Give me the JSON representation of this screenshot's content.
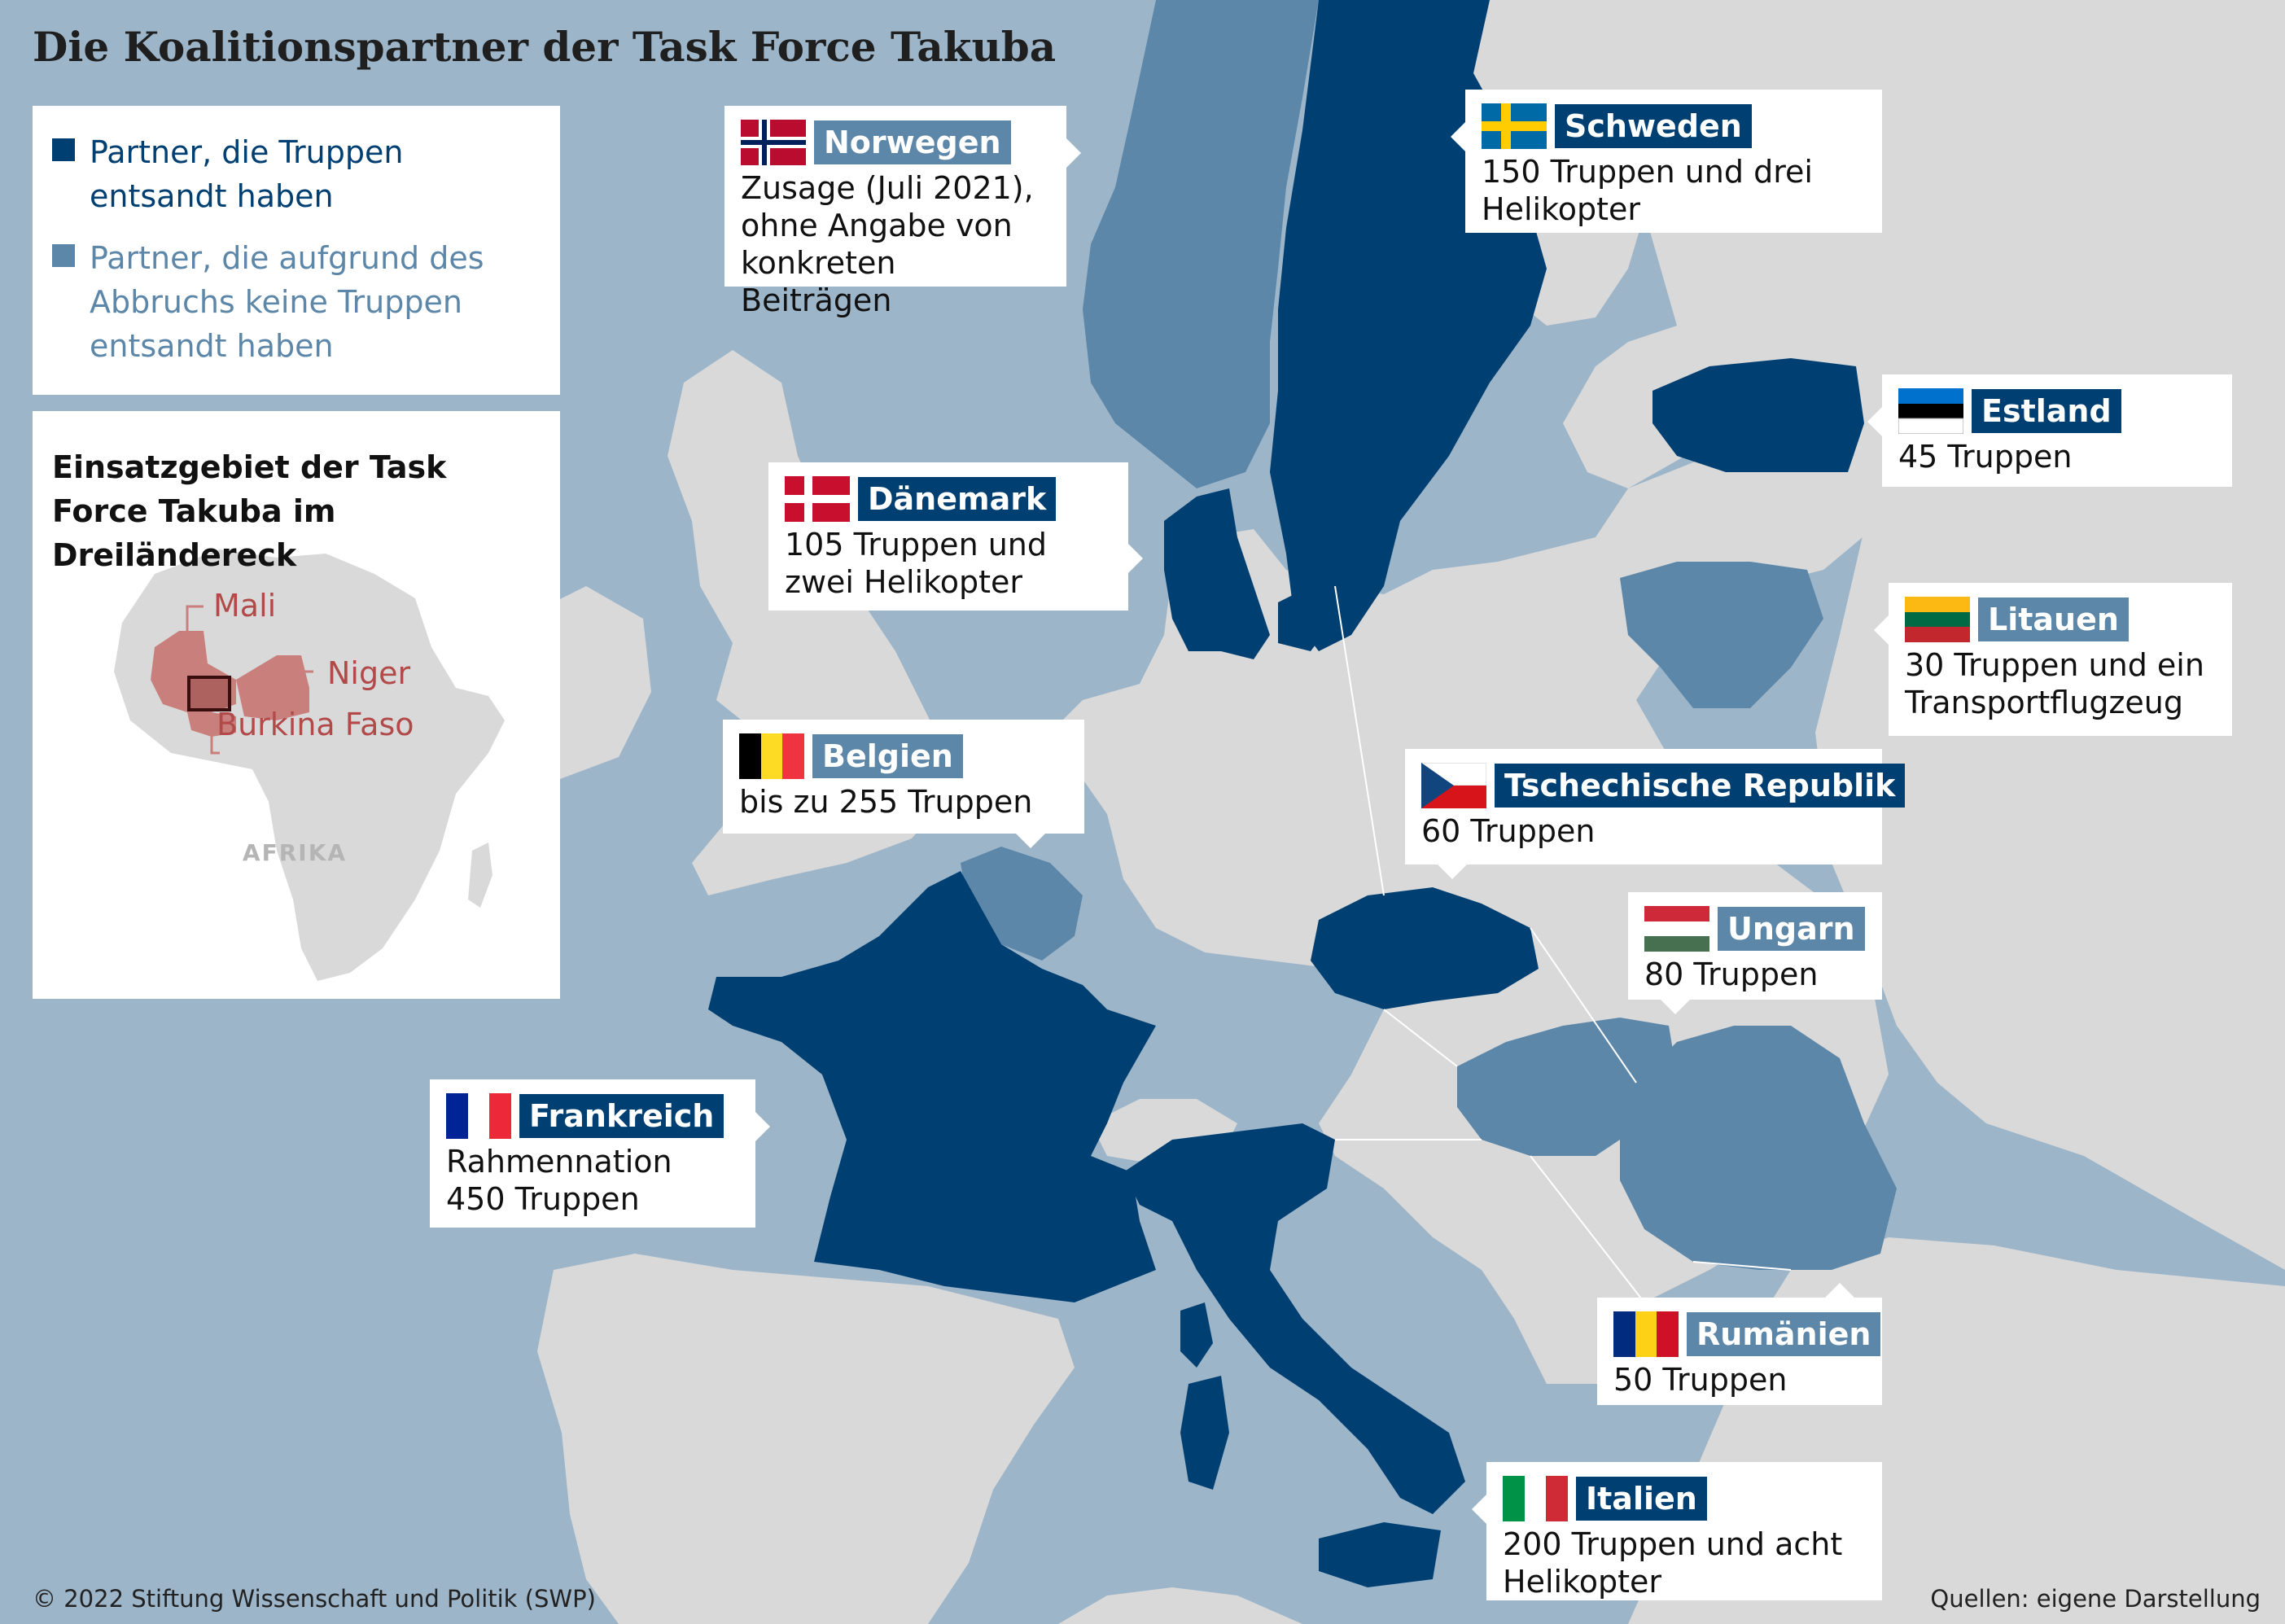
{
  "title": "Die Koalitionspartner der Task Force Takuba",
  "colors": {
    "sea": "#9db5c9",
    "land": "#d9d9d9",
    "deployed": "#003f72",
    "not_deployed": "#5d87a9",
    "africa_highlight": "#c9807d",
    "africa_label": "#b24a4a"
  },
  "legend": {
    "deployed": "Partner, die Truppen\nentsandt haben",
    "not_deployed": "Partner, die aufgrund des\nAbbruchs keine Truppen\nentsandt haben"
  },
  "inset": {
    "title": "Einsatzgebiet der Task Force Takuba im Dreiländereck",
    "labels": {
      "mali": "Mali",
      "niger": "Niger",
      "burkina": "Burkina Faso",
      "continent": "AFRIKA"
    }
  },
  "partners": [
    {
      "id": "norwegen",
      "name": "Norwegen",
      "status": "not_deployed",
      "flag": "norway-flag-icon",
      "text": "Zusage (Juli 2021),\nohne Angabe von\nkonkreten Beiträgen"
    },
    {
      "id": "schweden",
      "name": "Schweden",
      "status": "deployed",
      "flag": "sweden-flag-icon",
      "text": "150 Truppen und drei\nHelikopter"
    },
    {
      "id": "estland",
      "name": "Estland",
      "status": "deployed",
      "flag": "estonia-flag-icon",
      "text": "45 Truppen"
    },
    {
      "id": "daenemark",
      "name": "Dänemark",
      "status": "deployed",
      "flag": "denmark-flag-icon",
      "text": "105 Truppen und\nzwei Helikopter"
    },
    {
      "id": "litauen",
      "name": "Litauen",
      "status": "not_deployed",
      "flag": "lithuania-flag-icon",
      "text": "30 Truppen und ein\nTransportflugzeug"
    },
    {
      "id": "belgien",
      "name": "Belgien",
      "status": "not_deployed",
      "flag": "belgium-flag-icon",
      "text": "bis zu 255 Truppen"
    },
    {
      "id": "tschechien",
      "name": "Tschechische Republik",
      "status": "deployed",
      "flag": "czech-flag-icon",
      "text": "60 Truppen"
    },
    {
      "id": "ungarn",
      "name": "Ungarn",
      "status": "not_deployed",
      "flag": "hungary-flag-icon",
      "text": "80 Truppen"
    },
    {
      "id": "frankreich",
      "name": "Frankreich",
      "status": "deployed",
      "flag": "france-flag-icon",
      "text": "Rahmennation\n450 Truppen"
    },
    {
      "id": "rumaenien",
      "name": "Rumänien",
      "status": "not_deployed",
      "flag": "romania-flag-icon",
      "text": "50 Truppen"
    },
    {
      "id": "italien",
      "name": "Italien",
      "status": "deployed",
      "flag": "italy-flag-icon",
      "text": "200 Truppen und acht\nHelikopter"
    }
  ],
  "footer": {
    "copyright": "© 2022 Stiftung Wissenschaft und Politik (SWP)",
    "source": "Quellen: eigene Darstellung"
  }
}
